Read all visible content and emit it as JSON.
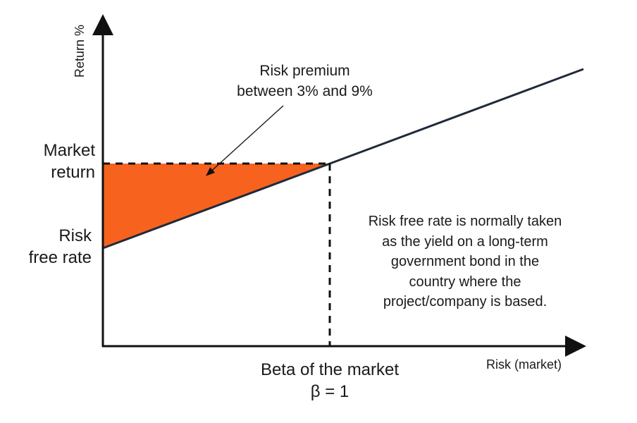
{
  "y_axis_label": "Return %",
  "x_axis_label": "Risk (market)",
  "market_return_label": [
    "Market",
    "return"
  ],
  "risk_free_label": [
    "Risk",
    "free rate"
  ],
  "beta_label": [
    "Beta of the market",
    "β = 1"
  ],
  "premium_annotation": [
    "Risk premium",
    "between 3% and 9%"
  ],
  "risk_free_note": [
    "Risk free rate is normally taken",
    "as the yield on a long-term",
    "government bond in the",
    "country where the",
    "project/company is based."
  ],
  "colors": {
    "premium_fill": "#f7621f",
    "line": "#1f2a3a",
    "axis": "#111111"
  }
}
